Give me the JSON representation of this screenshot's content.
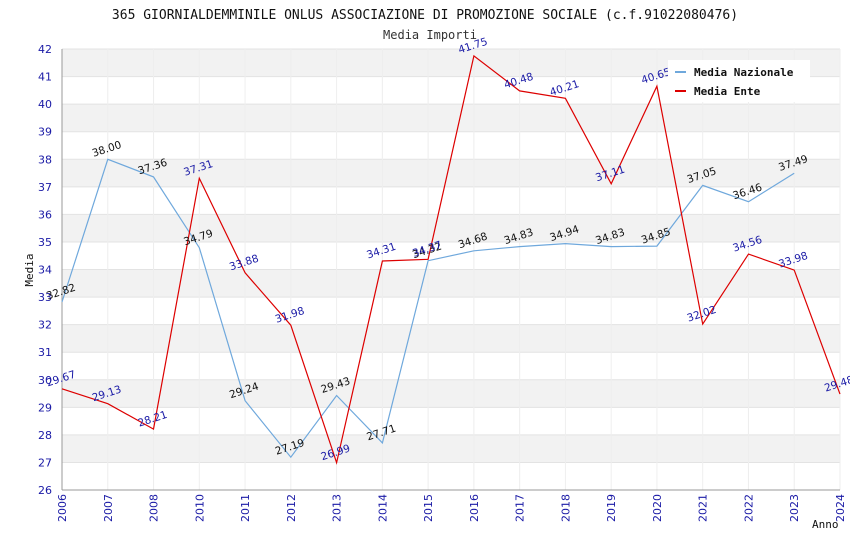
{
  "chart_data": {
    "type": "line",
    "title": "365 GIORNIALDEMMINILE ONLUS ASSOCIAZIONE DI PROMOZIONE SOCIALE (c.f.91022080476)",
    "subtitle": "Media Importi",
    "xlabel": "Anno",
    "ylabel": "Media",
    "ylim": [
      26,
      42
    ],
    "yticks": [
      26,
      27,
      28,
      29,
      30,
      31,
      32,
      33,
      34,
      35,
      36,
      37,
      38,
      39,
      40,
      41,
      42
    ],
    "x": [
      2006,
      2007,
      2008,
      2010,
      2011,
      2012,
      2013,
      2014,
      2015,
      2016,
      2017,
      2018,
      2019,
      2020,
      2021,
      2022,
      2023,
      2024
    ],
    "legend_position": "top-right",
    "grid": true,
    "series": [
      {
        "name": "Media Nazionale",
        "color": "#6fa8dc",
        "label_color": "#111111",
        "values": [
          32.82,
          38.0,
          37.36,
          34.79,
          29.24,
          27.19,
          29.43,
          27.71,
          34.32,
          34.68,
          34.83,
          34.94,
          34.83,
          34.85,
          37.05,
          36.46,
          37.49,
          null
        ],
        "labels": [
          "32.82",
          "38.00",
          "37.36",
          "34.79",
          "29.24",
          "27.19",
          "29.43",
          "27.71",
          "34.32",
          "34.68",
          "34.83",
          "34.94",
          "34.83",
          "34.85",
          "37.05",
          "36.46",
          "37.49",
          null
        ]
      },
      {
        "name": "Media Ente",
        "color": "#dd0000",
        "label_color": "#1a1aa6",
        "values": [
          29.67,
          29.13,
          28.21,
          37.31,
          33.88,
          31.98,
          26.99,
          34.31,
          34.37,
          41.75,
          40.48,
          40.21,
          37.11,
          40.65,
          32.02,
          34.56,
          33.98,
          29.48
        ],
        "labels": [
          "29.67",
          "29.13",
          "28.21",
          "37.31",
          "33.88",
          "31.98",
          "26.99",
          "34.31",
          "34.37",
          "41.75",
          "40.48",
          "40.21",
          "37.11",
          "40.65",
          "32.02",
          "34.56",
          "33.98",
          "29.48"
        ]
      }
    ]
  }
}
